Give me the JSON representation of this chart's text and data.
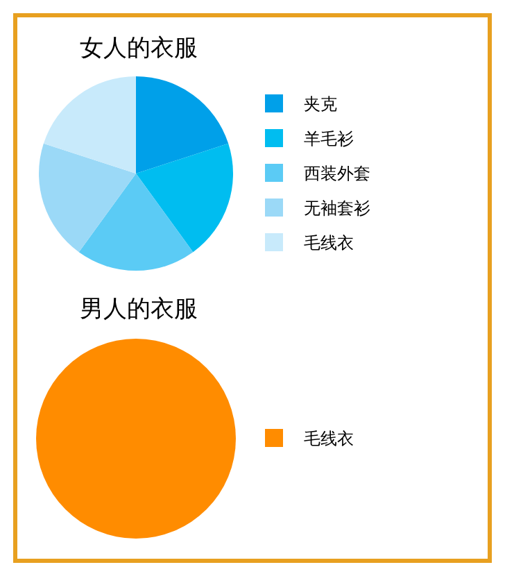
{
  "chart_data": [
    {
      "type": "pie",
      "title": "女人的衣服",
      "categories": [
        "夹克",
        "羊毛衫",
        "西装外套",
        "无袖套衫",
        "毛线衣"
      ],
      "values": [
        20,
        20,
        20,
        20,
        20
      ],
      "colors": [
        "#00a0e9",
        "#00bdf0",
        "#5bcbf5",
        "#9bd9f7",
        "#c8eafb"
      ],
      "legend": "right"
    },
    {
      "type": "pie",
      "title": "男人的衣服",
      "categories": [
        "毛线衣"
      ],
      "values": [
        100
      ],
      "colors": [
        "#ff8c00"
      ],
      "legend": "right"
    }
  ]
}
